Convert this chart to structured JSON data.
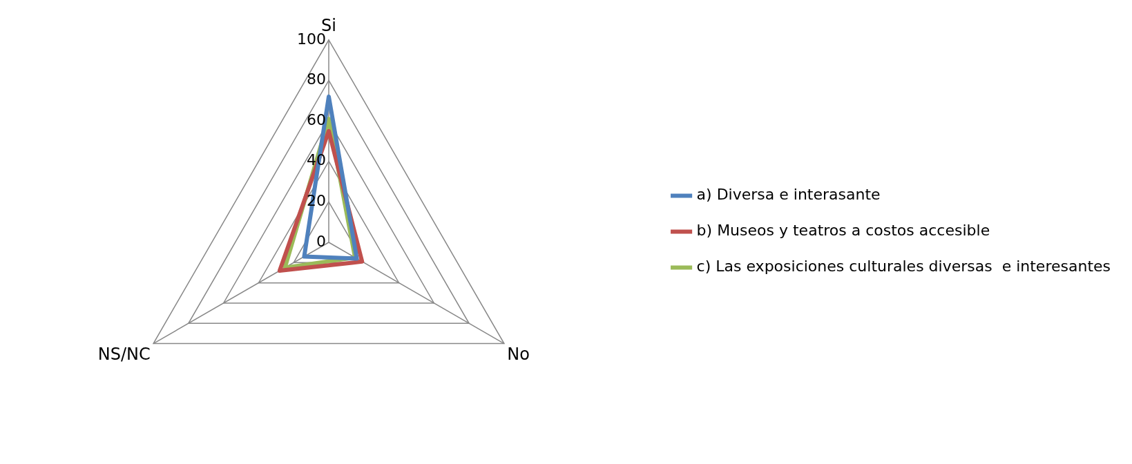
{
  "chart_data": {
    "type": "radar",
    "categories": [
      "Si",
      "No",
      "NS/NC"
    ],
    "series": [
      {
        "name": "a) Diversa e interasante",
        "color": "#4f81bd",
        "values": [
          72,
          16,
          14
        ]
      },
      {
        "name": "b) Museos y teatros a costos accesible",
        "color": "#c0504d",
        "values": [
          55,
          19,
          28
        ]
      },
      {
        "name": "c) Las exposiciones culturales diversas  e interesantes",
        "color": "#9bbb59",
        "values": [
          61,
          15,
          25
        ]
      }
    ],
    "ylim": [
      0,
      100
    ],
    "yticks": [
      0,
      20,
      40,
      60,
      80,
      100
    ],
    "grid": true,
    "legend": "right",
    "marker": "none"
  }
}
